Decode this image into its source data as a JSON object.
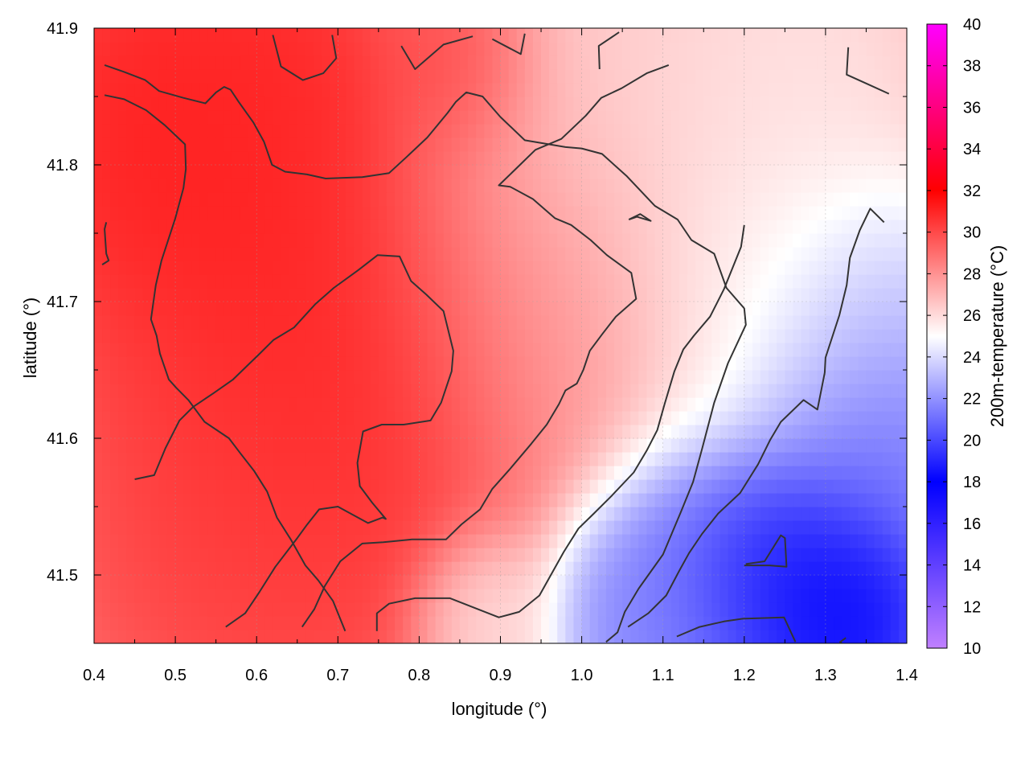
{
  "chart_data": {
    "type": "heatmap",
    "title": "",
    "xlabel": "longitude (°)",
    "ylabel": "latitude (°)",
    "colorbar_label": "200m-temperature (°C)",
    "xlim": [
      0.4,
      1.4
    ],
    "ylim": [
      41.45,
      41.9
    ],
    "x_ticks": [
      "0.4",
      "0.5",
      "0.6",
      "0.7",
      "0.8",
      "0.9",
      "1.0",
      "1.1",
      "1.2",
      "1.3",
      "1.4"
    ],
    "y_ticks": [
      "41.5",
      "41.6",
      "41.7",
      "41.8",
      "41.9"
    ],
    "colorbar_range": [
      10,
      40
    ],
    "colorbar_ticks": [
      "10",
      "12",
      "14",
      "16",
      "18",
      "20",
      "22",
      "24",
      "26",
      "28",
      "30",
      "32",
      "34",
      "36",
      "38",
      "40"
    ],
    "grid": true,
    "colorscale": [
      {
        "value": 10,
        "color": "#c080ff"
      },
      {
        "value": 18,
        "color": "#0000ff"
      },
      {
        "value": 25,
        "color": "#ffffff"
      },
      {
        "value": 32,
        "color": "#ff0000"
      },
      {
        "value": 40,
        "color": "#ff00ff"
      }
    ],
    "temperature_field": {
      "base": 27.5,
      "sources": [
        {
          "lon": 0.5,
          "lat": 41.82,
          "temp": 31.5,
          "radius": 0.12
        },
        {
          "lon": 0.62,
          "lat": 41.86,
          "temp": 31.0,
          "radius": 0.08
        },
        {
          "lon": 0.7,
          "lat": 41.67,
          "temp": 31.5,
          "radius": 0.14
        },
        {
          "lon": 0.6,
          "lat": 41.55,
          "temp": 30.5,
          "radius": 0.14
        },
        {
          "lon": 0.85,
          "lat": 41.88,
          "temp": 30.5,
          "radius": 0.06
        },
        {
          "lon": 0.95,
          "lat": 41.7,
          "temp": 27.5,
          "radius": 0.12
        },
        {
          "lon": 1.05,
          "lat": 41.88,
          "temp": 26.5,
          "radius": 0.12
        },
        {
          "lon": 1.2,
          "lat": 41.85,
          "temp": 25.5,
          "radius": 0.12
        },
        {
          "lon": 1.22,
          "lat": 41.7,
          "temp": 25.0,
          "radius": 0.1
        },
        {
          "lon": 1.35,
          "lat": 41.68,
          "temp": 23.0,
          "radius": 0.08
        },
        {
          "lon": 1.25,
          "lat": 41.5,
          "temp": 17.5,
          "radius": 0.07
        },
        {
          "lon": 1.33,
          "lat": 41.47,
          "temp": 17.5,
          "radius": 0.06
        },
        {
          "lon": 1.15,
          "lat": 41.5,
          "temp": 20.0,
          "radius": 0.08
        },
        {
          "lon": 1.35,
          "lat": 41.6,
          "temp": 20.0,
          "radius": 0.08
        },
        {
          "lon": 1.07,
          "lat": 41.47,
          "temp": 21.5,
          "radius": 0.06
        },
        {
          "lon": 0.88,
          "lat": 41.47,
          "temp": 25.5,
          "radius": 0.05
        }
      ]
    },
    "contour_lines": [
      [
        [
          0.413,
          41.873
        ],
        [
          0.437,
          41.868
        ],
        [
          0.463,
          41.862
        ],
        [
          0.48,
          41.854
        ],
        [
          0.51,
          41.849
        ],
        [
          0.537,
          41.845
        ],
        [
          0.55,
          41.853
        ],
        [
          0.56,
          41.857
        ],
        [
          0.568,
          41.855
        ],
        [
          0.578,
          41.846
        ],
        [
          0.596,
          41.831
        ],
        [
          0.609,
          41.817
        ],
        [
          0.619,
          41.8
        ],
        [
          0.635,
          41.795
        ],
        [
          0.662,
          41.793
        ],
        [
          0.685,
          41.79
        ],
        [
          0.73,
          41.791
        ],
        [
          0.763,
          41.794
        ],
        [
          0.785,
          41.806
        ],
        [
          0.81,
          41.82
        ],
        [
          0.835,
          41.838
        ],
        [
          0.845,
          41.846
        ],
        [
          0.858,
          41.853
        ],
        [
          0.878,
          41.85
        ],
        [
          0.9,
          41.835
        ],
        [
          0.93,
          41.818
        ],
        [
          0.98,
          41.813
        ],
        [
          1.0,
          41.812
        ],
        [
          1.025,
          41.808
        ],
        [
          1.055,
          41.792
        ],
        [
          1.09,
          41.77
        ],
        [
          1.118,
          41.76
        ],
        [
          1.135,
          41.745
        ],
        [
          1.163,
          41.735
        ],
        [
          1.178,
          41.71
        ],
        [
          1.2,
          41.695
        ],
        [
          1.202,
          41.683
        ],
        [
          1.18,
          41.655
        ],
        [
          1.163,
          41.626
        ],
        [
          1.148,
          41.592
        ],
        [
          1.137,
          41.568
        ],
        [
          1.122,
          41.546
        ],
        [
          1.1,
          41.515
        ],
        [
          1.07,
          41.49
        ],
        [
          1.053,
          41.473
        ],
        [
          1.044,
          41.458
        ],
        [
          1.03,
          41.451
        ]
      ],
      [
        [
          0.413,
          41.851
        ],
        [
          0.437,
          41.848
        ],
        [
          0.464,
          41.84
        ],
        [
          0.487,
          41.829
        ],
        [
          0.512,
          41.815
        ],
        [
          0.513,
          41.797
        ],
        [
          0.51,
          41.783
        ],
        [
          0.5,
          41.761
        ],
        [
          0.483,
          41.73
        ],
        [
          0.476,
          41.712
        ],
        [
          0.47,
          41.687
        ],
        [
          0.477,
          41.675
        ],
        [
          0.481,
          41.662
        ],
        [
          0.492,
          41.643
        ],
        [
          0.501,
          41.637
        ],
        [
          0.516,
          41.628
        ],
        [
          0.536,
          41.612
        ],
        [
          0.566,
          41.6
        ],
        [
          0.58,
          41.589
        ],
        [
          0.597,
          41.576
        ],
        [
          0.613,
          41.561
        ],
        [
          0.625,
          41.542
        ],
        [
          0.642,
          41.526
        ],
        [
          0.66,
          41.507
        ],
        [
          0.676,
          41.496
        ],
        [
          0.694,
          41.481
        ],
        [
          0.709,
          41.459
        ]
      ],
      [
        [
          0.45,
          41.57
        ],
        [
          0.474,
          41.573
        ],
        [
          0.488,
          41.593
        ],
        [
          0.505,
          41.613
        ],
        [
          0.522,
          41.623
        ],
        [
          0.547,
          41.633
        ],
        [
          0.571,
          41.643
        ],
        [
          0.604,
          41.662
        ],
        [
          0.621,
          41.672
        ],
        [
          0.646,
          41.681
        ],
        [
          0.672,
          41.698
        ],
        [
          0.695,
          41.71
        ],
        [
          0.725,
          41.723
        ],
        [
          0.749,
          41.734
        ],
        [
          0.776,
          41.733
        ],
        [
          0.79,
          41.715
        ],
        [
          0.809,
          41.705
        ],
        [
          0.83,
          41.693
        ],
        [
          0.842,
          41.664
        ],
        [
          0.84,
          41.649
        ],
        [
          0.827,
          41.626
        ],
        [
          0.814,
          41.613
        ],
        [
          0.781,
          41.61
        ],
        [
          0.754,
          41.61
        ],
        [
          0.731,
          41.605
        ],
        [
          0.724,
          41.582
        ],
        [
          0.727,
          41.565
        ],
        [
          0.742,
          41.553
        ],
        [
          0.759,
          41.541
        ],
        [
          0.755,
          41.542
        ],
        [
          0.737,
          41.538
        ],
        [
          0.7,
          41.55
        ],
        [
          0.677,
          41.548
        ],
        [
          0.661,
          41.536
        ],
        [
          0.65,
          41.527
        ],
        [
          0.623,
          41.506
        ],
        [
          0.604,
          41.488
        ],
        [
          0.586,
          41.472
        ],
        [
          0.562,
          41.462
        ]
      ],
      [
        [
          0.656,
          41.462
        ],
        [
          0.671,
          41.475
        ],
        [
          0.684,
          41.492
        ],
        [
          0.703,
          41.51
        ],
        [
          0.73,
          41.523
        ],
        [
          0.756,
          41.524
        ],
        [
          0.791,
          41.526
        ],
        [
          0.833,
          41.526
        ],
        [
          0.852,
          41.537
        ],
        [
          0.875,
          41.548
        ],
        [
          0.89,
          41.563
        ],
        [
          0.911,
          41.577
        ],
        [
          0.938,
          41.596
        ],
        [
          0.957,
          41.61
        ],
        [
          0.972,
          41.625
        ],
        [
          0.98,
          41.635
        ],
        [
          0.994,
          41.64
        ],
        [
          1.002,
          41.65
        ],
        [
          1.01,
          41.664
        ],
        [
          1.025,
          41.676
        ],
        [
          1.042,
          41.689
        ],
        [
          1.067,
          41.702
        ],
        [
          1.061,
          41.721
        ],
        [
          1.031,
          41.734
        ],
        [
          1.011,
          41.745
        ],
        [
          0.987,
          41.756
        ],
        [
          0.967,
          41.761
        ],
        [
          0.94,
          41.775
        ],
        [
          0.912,
          41.784
        ],
        [
          0.898,
          41.785
        ],
        [
          0.924,
          41.8
        ],
        [
          0.943,
          41.811
        ],
        [
          0.975,
          41.819
        ],
        [
          1.005,
          41.836
        ],
        [
          1.024,
          41.849
        ],
        [
          1.049,
          41.856
        ],
        [
          1.08,
          41.867
        ],
        [
          1.107,
          41.873
        ]
      ],
      [
        [
          0.748,
          41.459
        ],
        [
          0.748,
          41.472
        ],
        [
          0.763,
          41.479
        ],
        [
          0.795,
          41.483
        ],
        [
          0.838,
          41.483
        ],
        [
          0.868,
          41.476
        ],
        [
          0.898,
          41.469
        ],
        [
          0.923,
          41.473
        ],
        [
          0.948,
          41.485
        ],
        [
          0.978,
          41.517
        ],
        [
          0.996,
          41.534
        ],
        [
          1.015,
          41.545
        ],
        [
          1.037,
          41.558
        ],
        [
          1.064,
          41.575
        ],
        [
          1.08,
          41.591
        ],
        [
          1.093,
          41.606
        ],
        [
          1.102,
          41.625
        ],
        [
          1.114,
          41.649
        ],
        [
          1.125,
          41.665
        ],
        [
          1.138,
          41.675
        ],
        [
          1.158,
          41.689
        ],
        [
          1.175,
          41.709
        ],
        [
          1.196,
          41.74
        ],
        [
          1.2,
          41.756
        ]
      ],
      [
        [
          0.415,
          41.758
        ],
        [
          0.413,
          41.753
        ],
        [
          0.415,
          41.735
        ],
        [
          0.418,
          41.73
        ],
        [
          0.41,
          41.727
        ]
      ],
      [
        [
          0.62,
          41.895
        ],
        [
          0.63,
          41.872
        ],
        [
          0.657,
          41.862
        ],
        [
          0.682,
          41.867
        ],
        [
          0.698,
          41.878
        ],
        [
          0.693,
          41.895
        ]
      ],
      [
        [
          0.778,
          41.887
        ],
        [
          0.795,
          41.87
        ],
        [
          0.83,
          41.888
        ],
        [
          0.866,
          41.894
        ]
      ],
      [
        [
          0.89,
          41.892
        ],
        [
          0.925,
          41.881
        ],
        [
          0.93,
          41.896
        ]
      ],
      [
        [
          1.022,
          41.87
        ],
        [
          1.021,
          41.887
        ],
        [
          1.046,
          41.897
        ]
      ],
      [
        [
          1.058,
          41.76
        ],
        [
          1.068,
          41.762
        ],
        [
          1.085,
          41.759
        ],
        [
          1.072,
          41.764
        ],
        [
          1.058,
          41.76
        ]
      ],
      [
        [
          1.202,
          41.508
        ],
        [
          1.225,
          41.51
        ],
        [
          1.245,
          41.529
        ],
        [
          1.25,
          41.527
        ],
        [
          1.252,
          41.506
        ],
        [
          1.231,
          41.507
        ],
        [
          1.2,
          41.507
        ]
      ],
      [
        [
          1.117,
          41.455
        ],
        [
          1.145,
          41.462
        ],
        [
          1.175,
          41.466
        ],
        [
          1.198,
          41.468
        ],
        [
          1.249,
          41.469
        ],
        [
          1.263,
          41.451
        ]
      ],
      [
        [
          1.325,
          41.454
        ],
        [
          1.318,
          41.451
        ],
        [
          1.32,
          41.45
        ]
      ],
      [
        [
          1.328,
          41.886
        ],
        [
          1.326,
          41.866
        ],
        [
          1.352,
          41.859
        ],
        [
          1.378,
          41.852
        ]
      ],
      [
        [
          1.372,
          41.758
        ],
        [
          1.355,
          41.768
        ],
        [
          1.342,
          41.752
        ],
        [
          1.33,
          41.732
        ],
        [
          1.326,
          41.712
        ],
        [
          1.317,
          41.69
        ],
        [
          1.3,
          41.659
        ],
        [
          1.299,
          41.648
        ],
        [
          1.29,
          41.621
        ],
        [
          1.273,
          41.628
        ],
        [
          1.245,
          41.612
        ],
        [
          1.232,
          41.599
        ],
        [
          1.217,
          41.581
        ],
        [
          1.195,
          41.56
        ],
        [
          1.168,
          41.545
        ],
        [
          1.148,
          41.53
        ],
        [
          1.132,
          41.516
        ],
        [
          1.12,
          41.503
        ],
        [
          1.104,
          41.485
        ],
        [
          1.082,
          41.472
        ],
        [
          1.057,
          41.462
        ]
      ]
    ]
  }
}
